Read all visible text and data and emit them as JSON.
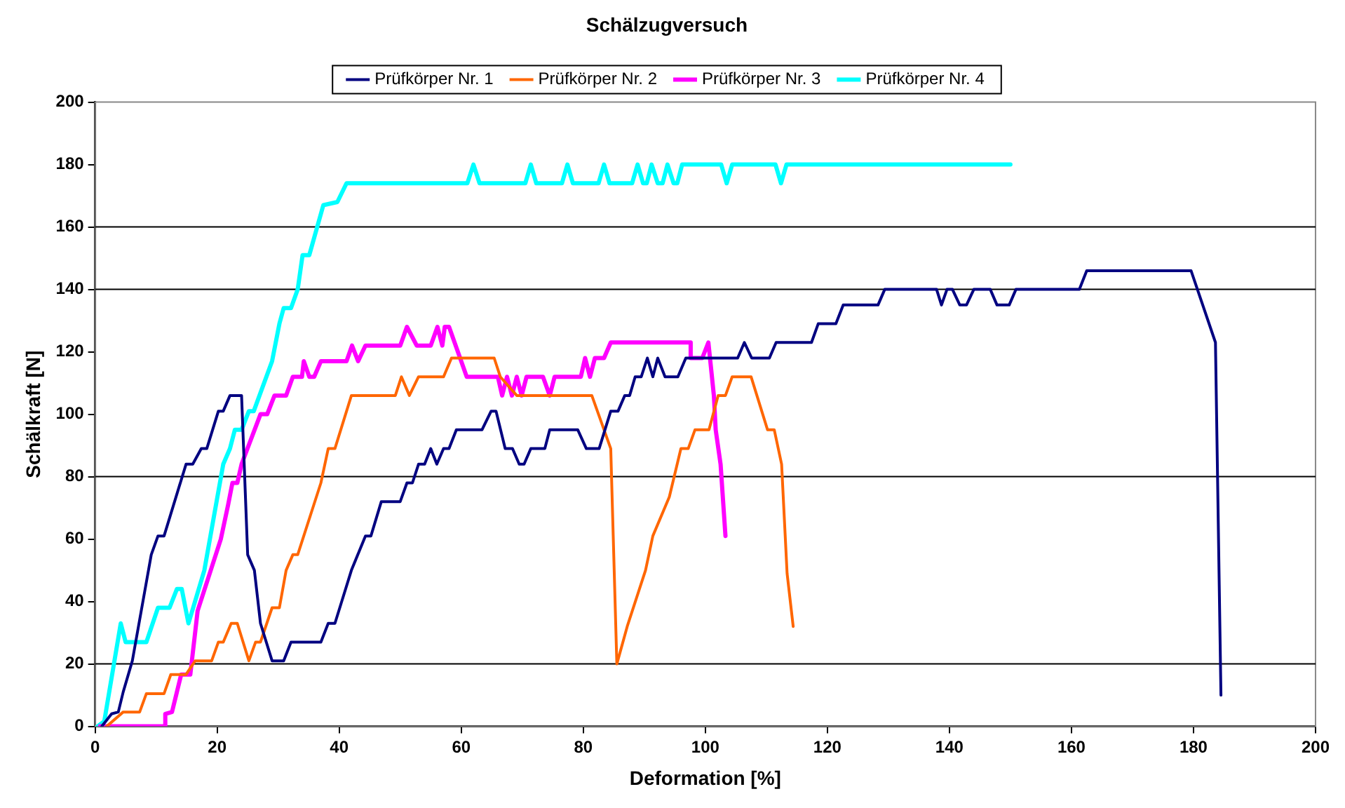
{
  "chart_data": {
    "type": "line",
    "title": "Schälzugversuch",
    "xlabel": "Deformation [%]",
    "ylabel": "Schälkraft [N]",
    "xlim": [
      0,
      200
    ],
    "xticks": [
      0,
      20,
      40,
      60,
      80,
      100,
      120,
      140,
      160,
      180,
      200
    ],
    "ylim": [
      0,
      200
    ],
    "yticks": [
      0,
      20,
      40,
      60,
      80,
      100,
      120,
      140,
      160,
      180,
      200
    ],
    "grid": false,
    "legend": "top",
    "marker": "none",
    "line_style": "solid",
    "ref_lines": [
      {
        "axis": "y",
        "value": 20,
        "color": "#000000"
      },
      {
        "axis": "y",
        "value": 80,
        "color": "#000000"
      },
      {
        "axis": "y",
        "value": 140,
        "color": "#000000"
      },
      {
        "axis": "y",
        "value": 160,
        "color": "#000000"
      }
    ],
    "series": [
      {
        "name": "Prüfkörper Nr. 1",
        "color": "#000080",
        "x": [
          1.1,
          2.7,
          3.8,
          4.6,
          6.1,
          9.2,
          10.3,
          11.3,
          14.9,
          16,
          17.4,
          18.3,
          20.2,
          21,
          22.1,
          24,
          25,
          26.1,
          27.1,
          29,
          30.9,
          32.1,
          37,
          38.2,
          39.3,
          42,
          44.3,
          45.2,
          46.9,
          50,
          51.1,
          52,
          53,
          54,
          55,
          56,
          57.1,
          58,
          59.2,
          63.4,
          64.9,
          65.7,
          67.2,
          68.4,
          69.5,
          70.3,
          71.4,
          73.7,
          74.5,
          79.1,
          80.5,
          82.6,
          84.5,
          85.7,
          86.8,
          87.6,
          88.5,
          89.5,
          90.5,
          91.4,
          92.2,
          93.4,
          95.5,
          96.8,
          105.3,
          106.4,
          107.6,
          110.5,
          111.6,
          117.4,
          118.5,
          121.4,
          122.6,
          128.3,
          129.4,
          137.9,
          138.7,
          139.6,
          140.5,
          141.7,
          142.8,
          144,
          146.7,
          147.8,
          149.8,
          150.9,
          161.3,
          162.5,
          179.6,
          183.6,
          184.5
        ],
        "values": [
          0,
          4,
          4.6,
          11,
          21,
          55,
          61,
          61,
          84,
          84,
          89,
          89,
          101,
          101,
          106,
          106,
          55,
          50,
          33,
          21,
          21,
          27,
          27,
          33,
          33,
          50,
          61,
          61,
          72,
          72,
          78,
          78,
          84,
          84,
          89,
          84,
          89,
          89,
          95,
          95,
          101,
          101,
          89,
          89,
          84,
          84,
          89,
          89,
          95,
          95,
          89,
          89,
          101,
          101,
          106,
          106,
          112,
          112,
          118,
          112,
          118,
          112,
          112,
          118,
          118,
          123,
          118,
          118,
          123,
          123,
          129,
          129,
          135,
          135,
          140,
          140,
          135,
          140,
          140,
          135,
          135,
          140,
          140,
          135,
          135,
          140,
          140,
          146,
          146,
          123,
          10
        ]
      },
      {
        "name": "Prüfkörper Nr. 2",
        "color": "#ff6600",
        "x": [
          1.9,
          4.6,
          7.3,
          8.4,
          11.3,
          12.4,
          14.9,
          16.4,
          19.1,
          20.2,
          21,
          22.3,
          23.3,
          25.2,
          26.3,
          27.1,
          29,
          30.2,
          31.3,
          32.4,
          33.2,
          37,
          38.2,
          39.3,
          42,
          49.2,
          50.2,
          51.5,
          53,
          57.1,
          58.4,
          65.4,
          66.4,
          69.1,
          81.4,
          84.5,
          85.5,
          87.2,
          90.2,
          91.4,
          94.1,
          96,
          97.2,
          98.3,
          100.6,
          102.1,
          103.3,
          104.4,
          107.5,
          110.2,
          111.3,
          112.5,
          113.4,
          114.4
        ],
        "values": [
          0,
          4.6,
          4.6,
          10.5,
          10.5,
          16.6,
          16.6,
          21,
          21,
          27,
          27,
          33,
          33,
          21,
          27,
          27,
          38,
          38,
          50,
          55,
          55,
          78,
          89,
          89,
          106,
          106,
          112,
          106,
          112,
          112,
          118,
          118,
          112,
          106,
          106,
          89,
          20,
          32,
          50,
          61,
          73.5,
          89,
          89,
          95,
          95,
          106,
          106,
          112,
          112,
          95,
          95,
          84,
          49,
          32
        ]
      },
      {
        "name": "Prüfkörper Nr. 3",
        "color": "#ff00ff",
        "x": [
          0.8,
          11.5,
          11.5,
          12.6,
          14.1,
          15.6,
          16.8,
          20.6,
          21.8,
          22.5,
          23.3,
          24,
          27.1,
          28.2,
          29.4,
          31.3,
          32.4,
          33.9,
          34.2,
          35.1,
          35.9,
          37,
          41.2,
          42.1,
          43.1,
          44.3,
          50,
          51.1,
          52.7,
          55,
          56.1,
          56.9,
          57.3,
          58,
          60.9,
          66,
          66.7,
          67.5,
          68.3,
          69.1,
          69.9,
          70.7,
          73.4,
          74.5,
          75.3,
          79.6,
          80.3,
          81.1,
          81.9,
          83.4,
          84.5,
          97.6,
          97.6,
          99.5,
          100.5,
          101.4,
          101.7,
          102.5,
          103.3
        ],
        "values": [
          0,
          0,
          4,
          4.6,
          16.6,
          16.6,
          37,
          60,
          71,
          78,
          78,
          84,
          100,
          100,
          106,
          106,
          112,
          112,
          117,
          112,
          112,
          117,
          117,
          122,
          117,
          122,
          122,
          128,
          122,
          122,
          128,
          122,
          128,
          128,
          112,
          112,
          106,
          112,
          106,
          112,
          106,
          112,
          112,
          106,
          112,
          112,
          118,
          112,
          118,
          118,
          123,
          123,
          118,
          118,
          123,
          106,
          95,
          84,
          61
        ]
      },
      {
        "name": "Prüfkörper Nr. 4",
        "color": "#00ffff",
        "x": [
          0.4,
          1.5,
          4.2,
          5,
          8.4,
          10.3,
          12.2,
          13.4,
          14.2,
          15.3,
          17.9,
          19.9,
          21,
          22.1,
          22.9,
          24,
          25.2,
          26,
          29,
          30.2,
          30.9,
          32.1,
          33.2,
          34,
          35.1,
          37.4,
          39.7,
          41.2,
          61,
          62,
          63,
          70.5,
          71.4,
          72.3,
          76.5,
          77.4,
          78.3,
          82.5,
          83.4,
          84.3,
          88,
          88.9,
          89.8,
          90.4,
          91.2,
          92.2,
          93,
          93.8,
          94.8,
          95.4,
          96.2,
          102.6,
          103.5,
          104.4,
          111.5,
          112.4,
          113.3,
          150
        ],
        "values": [
          0,
          1.6,
          33,
          27,
          27,
          38,
          38,
          44,
          44,
          33,
          50,
          72,
          84,
          89,
          95,
          95,
          101,
          101,
          117,
          129,
          134,
          134,
          140,
          151,
          151,
          167,
          168,
          174,
          174,
          180,
          174,
          174,
          180,
          174,
          174,
          180,
          174,
          174,
          180,
          174,
          174,
          180,
          174,
          174,
          180,
          174,
          174,
          180,
          174,
          174,
          180,
          180,
          174,
          180,
          180,
          174,
          180,
          180
        ]
      }
    ]
  }
}
